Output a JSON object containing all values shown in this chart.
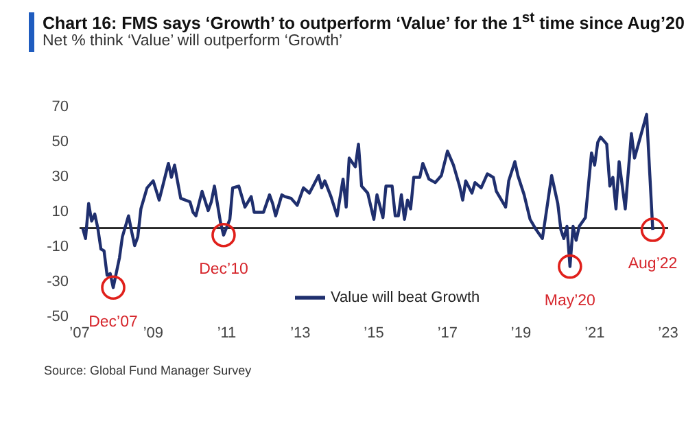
{
  "chart_data": {
    "type": "line",
    "title": "Chart 16: FMS says ‘Growth’ to outperform ‘Value’ for the 1$^{st}$ time since Aug’20",
    "subtitle": "Net % think ‘Value’ will outperform ‘Growth’",
    "x": [
      "2007-02",
      "2007-03",
      "2007-04",
      "2007-05",
      "2007-06",
      "2007-07",
      "2007-08",
      "2007-09",
      "2007-10",
      "2007-11",
      "2007-12",
      "2008-02",
      "2008-03",
      "2008-05",
      "2008-06",
      "2008-07",
      "2008-08",
      "2008-09",
      "2008-11",
      "2009-01",
      "2009-03",
      "2009-04",
      "2009-06",
      "2009-07",
      "2009-08",
      "2009-10",
      "2010-01",
      "2010-02",
      "2010-03",
      "2010-05",
      "2010-07",
      "2010-08",
      "2010-09",
      "2010-11",
      "2010-12",
      "2011-02",
      "2011-03",
      "2011-05",
      "2011-07",
      "2011-09",
      "2011-10",
      "2012-01",
      "2012-03",
      "2012-04",
      "2012-05",
      "2012-07",
      "2012-08",
      "2012-10",
      "2012-12",
      "2013-02",
      "2013-04",
      "2013-07",
      "2013-08",
      "2013-09",
      "2013-11",
      "2014-01",
      "2014-03",
      "2014-04",
      "2014-05",
      "2014-07",
      "2014-08",
      "2014-09",
      "2014-11",
      "2015-01",
      "2015-02",
      "2015-04",
      "2015-05",
      "2015-07",
      "2015-08",
      "2015-09",
      "2015-10",
      "2015-11",
      "2015-12",
      "2016-01",
      "2016-02",
      "2016-04",
      "2016-05",
      "2016-07",
      "2016-09",
      "2016-11",
      "2017-01",
      "2017-03",
      "2017-05",
      "2017-06",
      "2017-07",
      "2017-09",
      "2017-10",
      "2017-12",
      "2018-02",
      "2018-04",
      "2018-05",
      "2018-06",
      "2018-08",
      "2018-09",
      "2018-11",
      "2018-12",
      "2019-02",
      "2019-04",
      "2019-06",
      "2019-08",
      "2019-09",
      "2019-11",
      "2020-01",
      "2020-02",
      "2020-03",
      "2020-04",
      "2020-05",
      "2020-06",
      "2020-07",
      "2020-08",
      "2020-10",
      "2020-12",
      "2021-01",
      "2021-02",
      "2021-03",
      "2021-05",
      "2021-06",
      "2021-07",
      "2021-08",
      "2021-09",
      "2021-11",
      "2022-01",
      "2022-02",
      "2022-06",
      "2022-08"
    ],
    "series": [
      {
        "name": "Value will beat Growth",
        "color": "#1f2f6e",
        "values": [
          0,
          -6,
          14,
          4,
          8,
          0,
          -12,
          -13,
          -27,
          -26,
          -34,
          -17,
          -5,
          7,
          -2,
          -10,
          -5,
          11,
          23,
          27,
          16,
          23,
          37,
          29,
          36,
          17,
          15,
          9,
          7,
          21,
          10,
          15,
          24,
          3,
          -4,
          5,
          23,
          24,
          12,
          18,
          9,
          9,
          19,
          14,
          7,
          19,
          18,
          17,
          13,
          23,
          20,
          30,
          23,
          27,
          18,
          7,
          28,
          12,
          40,
          35,
          48,
          24,
          20,
          5,
          19,
          6,
          24,
          24,
          7,
          7,
          19,
          5,
          16,
          11,
          29,
          29,
          37,
          28,
          26,
          30,
          44,
          36,
          24,
          16,
          27,
          20,
          26,
          23,
          31,
          29,
          21,
          18,
          12,
          27,
          38,
          30,
          19,
          5,
          -1,
          -6,
          6,
          30,
          14,
          -1,
          -6,
          1,
          -22,
          1,
          -7,
          1,
          6,
          43,
          36,
          49,
          52,
          48,
          24,
          29,
          11,
          38,
          11,
          54,
          40,
          65,
          -1
        ]
      }
    ],
    "xlim": [
      "2007-01",
      "2023-01"
    ],
    "xticks": [
      {
        "value": "2007-01",
        "label": "’07"
      },
      {
        "value": "2009-01",
        "label": "’09"
      },
      {
        "value": "2011-01",
        "label": "’11"
      },
      {
        "value": "2013-01",
        "label": "’13"
      },
      {
        "value": "2015-01",
        "label": "’15"
      },
      {
        "value": "2017-01",
        "label": "’17"
      },
      {
        "value": "2019-01",
        "label": "’19"
      },
      {
        "value": "2021-01",
        "label": "’21"
      },
      {
        "value": "2023-01",
        "label": "’23"
      }
    ],
    "ylim": [
      -50,
      70
    ],
    "yticks": [
      -50,
      -30,
      -10,
      10,
      30,
      50,
      70
    ],
    "grid": false,
    "legend": "bottom",
    "marker": "none",
    "line_style": "solid",
    "ref_lines": [
      {
        "axis": "y",
        "value": 0,
        "color": "#000000"
      }
    ],
    "annotations": [
      {
        "text": "Dec’07",
        "x": "2007-12",
        "y": -34
      },
      {
        "text": "Dec’10",
        "x": "2010-12",
        "y": -4
      },
      {
        "text": "May’20",
        "x": "2020-05",
        "y": -22
      },
      {
        "text": "Aug’22",
        "x": "2022-08",
        "y": -1
      },
      "Source: Global Fund Manager Survey"
    ]
  }
}
